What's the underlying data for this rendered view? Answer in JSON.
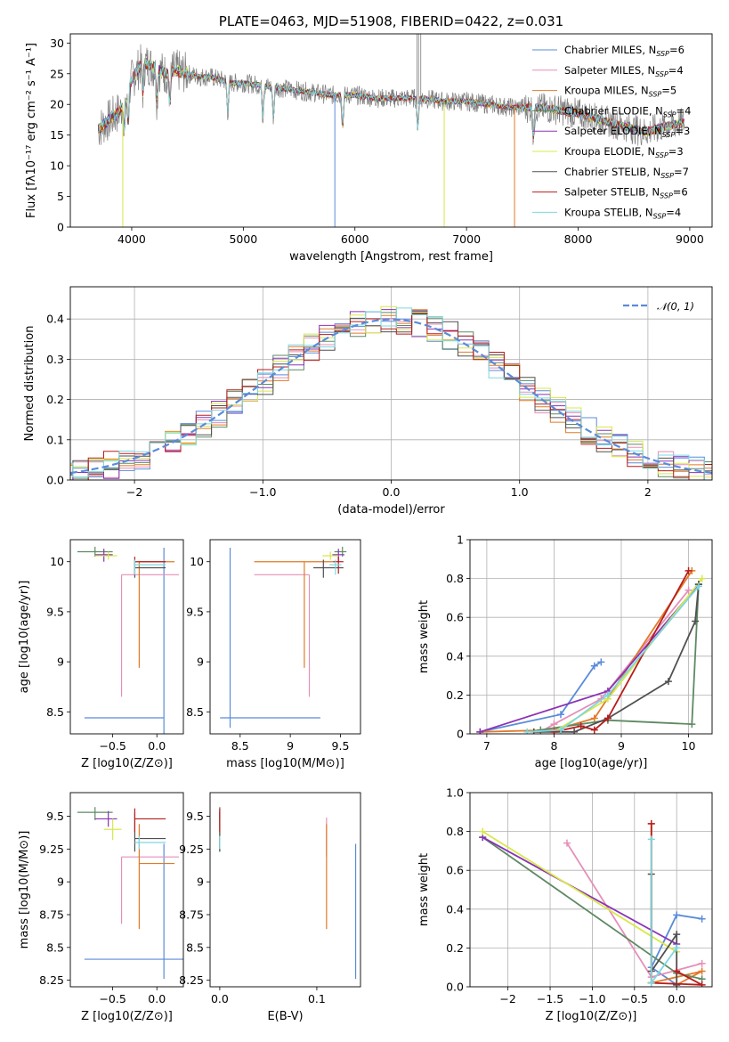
{
  "colors": {
    "Chabrier MILES": "#5b8bd9",
    "Salpeter MILES": "#e58fb8",
    "Kroupa MILES": "#e07a27",
    "Chabrier ELODIE": "#5e8a63",
    "Salpeter ELODIE": "#8a33b5",
    "Kroupa ELODIE": "#d7e84b",
    "Chabrier STELIB": "#505050",
    "Salpeter STELIB": "#b81c1c",
    "Kroupa STELIB": "#7dd7e0"
  },
  "chart_data": [
    {
      "type": "line",
      "title": "PLATE=0463, MJD=51908, FIBERID=0422, z=0.031",
      "xlabel": "wavelength [Angstrom, rest frame]",
      "ylabel": "Flux [fλ10⁻¹⁷ erg cm⁻² s⁻¹ A⁻¹]",
      "xlim": [
        3450,
        9200
      ],
      "ylim": [
        0,
        31.5
      ],
      "xticks": [
        4000,
        5000,
        6000,
        7000,
        8000,
        9000
      ],
      "yticks": [
        0,
        5,
        10,
        15,
        20,
        25,
        30
      ],
      "legend_position": "top-right",
      "legend": [
        {
          "model": "Chabrier MILES",
          "label": "Chabrier MILES, N",
          "sub": "SSP",
          "tail": "=6"
        },
        {
          "model": "Salpeter MILES",
          "label": "Salpeter MILES, N",
          "sub": "SSP",
          "tail": "=4"
        },
        {
          "model": "Kroupa MILES",
          "label": "Kroupa MILES, N",
          "sub": "SSP",
          "tail": "=5"
        },
        {
          "model": "Chabrier ELODIE",
          "label": "Chabrier ELODIE, N",
          "sub": "SSP",
          "tail": "=4"
        },
        {
          "model": "Salpeter ELODIE",
          "label": "Salpeter ELODIE, N",
          "sub": "SSP",
          "tail": "=3"
        },
        {
          "model": "Kroupa ELODIE",
          "label": "Kroupa ELODIE, N",
          "sub": "SSP",
          "tail": "=3"
        },
        {
          "model": "Chabrier STELIB",
          "label": "Chabrier STELIB, N",
          "sub": "SSP",
          "tail": "=7"
        },
        {
          "model": "Salpeter STELIB",
          "label": "Salpeter STELIB, N",
          "sub": "SSP",
          "tail": "=6"
        },
        {
          "model": "Kroupa STELIB",
          "label": "Kroupa STELIB, N",
          "sub": "SSP",
          "tail": "=4"
        }
      ],
      "continuum": {
        "wavelength": [
          3700,
          3800,
          3900,
          4000,
          4100,
          4200,
          4300,
          4400,
          4500,
          4600,
          4700,
          4800,
          4900,
          5000,
          5200,
          5400,
          5600,
          5800,
          6000,
          6200,
          6400,
          6600,
          6800,
          7000,
          7200,
          7400,
          7600,
          7800,
          8000,
          8200,
          8400,
          8600,
          8800,
          8950
        ],
        "flux": [
          16,
          17.5,
          19,
          24,
          27,
          26,
          25,
          25.5,
          25,
          24.5,
          24.5,
          24,
          23.5,
          23.5,
          23,
          22.5,
          22,
          21.5,
          21.5,
          21,
          21,
          21,
          20.5,
          20.5,
          20,
          19.5,
          19.5,
          19.2,
          18.5,
          17.5,
          16.5,
          15.5,
          16.5,
          17
        ]
      },
      "absorption_features": [
        3933,
        3968,
        4101,
        4226,
        4340,
        4861,
        5175,
        5270,
        5890,
        6563,
        7600
      ]
    },
    {
      "type": "histogram",
      "xlabel": "(data-model)/error",
      "ylabel": "Normed distribution",
      "xlim": [
        -2.5,
        2.5
      ],
      "ylim": [
        0,
        0.48
      ],
      "xticks": [
        -2,
        -1,
        0,
        1,
        2
      ],
      "yticks": [
        0.0,
        0.1,
        0.2,
        0.3,
        0.4
      ],
      "bin_width": 0.12,
      "legend_position": "top-right",
      "reference_label": "𝒩(0, 1)",
      "reference_curve": "normal(0,1)"
    },
    {
      "type": "errorbar",
      "xlabel": "Z [log10(Z/Z⊙)]",
      "ylabel": "age  [log10(age/yr)]",
      "xlim": [
        -0.98,
        0.3
      ],
      "ylim": [
        8.28,
        10.22
      ],
      "xticks": [
        -0.5,
        0.0
      ],
      "yticks": [
        8.5,
        9.0,
        9.5,
        10.0
      ],
      "points": [
        {
          "model": "Chabrier MILES",
          "x": 0.08,
          "xerr": [
            0.9,
            0.0
          ],
          "y": 8.44,
          "yerr": [
            0.2,
            1.7
          ]
        },
        {
          "model": "Salpeter MILES",
          "x": -0.4,
          "xerr": [
            0.0,
            0.65
          ],
          "y": 9.87,
          "yerr": [
            1.22,
            0.0
          ]
        },
        {
          "model": "Kroupa MILES",
          "x": -0.2,
          "xerr": [
            0.0,
            0.4
          ],
          "y": 10.0,
          "yerr": [
            1.06,
            0.0
          ]
        },
        {
          "model": "Chabrier ELODIE",
          "x": -0.7,
          "xerr": [
            0.2,
            0.2
          ],
          "y": 10.1,
          "yerr": [
            0.05,
            0.05
          ]
        },
        {
          "model": "Salpeter ELODIE",
          "x": -0.6,
          "xerr": [
            0.1,
            0.1
          ],
          "y": 10.07,
          "yerr": [
            0.07,
            0.06
          ]
        },
        {
          "model": "Kroupa ELODIE",
          "x": -0.55,
          "xerr": [
            0.15,
            0.1
          ],
          "y": 10.06,
          "yerr": [
            0.04,
            0.04
          ]
        },
        {
          "model": "Chabrier STELIB",
          "x": -0.25,
          "xerr": [
            0.0,
            0.35
          ],
          "y": 9.94,
          "yerr": [
            0.1,
            0.08
          ]
        },
        {
          "model": "Salpeter STELIB",
          "x": -0.25,
          "xerr": [
            0.0,
            0.35
          ],
          "y": 10.0,
          "yerr": [
            0.12,
            0.05
          ]
        },
        {
          "model": "Kroupa STELIB",
          "x": -0.25,
          "xerr": [
            0.0,
            0.35
          ],
          "y": 9.97,
          "yerr": [
            0.1,
            0.05
          ]
        }
      ]
    },
    {
      "type": "errorbar",
      "xlabel": "mass [log10(M/M⊙)]",
      "ylabel": "",
      "xlim": [
        8.2,
        9.7
      ],
      "ylim": [
        8.28,
        10.22
      ],
      "xticks": [
        8.5,
        9.0,
        9.5
      ],
      "yticks": [
        8.5,
        9.0,
        9.5,
        10.0
      ],
      "points": [
        {
          "model": "Chabrier MILES",
          "x": 8.4,
          "xerr": [
            0.1,
            0.9
          ],
          "y": 8.44,
          "yerr": [
            0.1,
            1.7
          ]
        },
        {
          "model": "Salpeter MILES",
          "x": 9.19,
          "xerr": [
            0.55,
            0.0
          ],
          "y": 9.87,
          "yerr": [
            1.22,
            0.0
          ]
        },
        {
          "model": "Kroupa MILES",
          "x": 9.14,
          "xerr": [
            0.5,
            0.3
          ],
          "y": 10.0,
          "yerr": [
            1.06,
            0.0
          ]
        },
        {
          "model": "Chabrier ELODIE",
          "x": 9.52,
          "xerr": [
            0.08,
            0.04
          ],
          "y": 10.1,
          "yerr": [
            0.05,
            0.05
          ]
        },
        {
          "model": "Salpeter ELODIE",
          "x": 9.48,
          "xerr": [
            0.06,
            0.06
          ],
          "y": 10.07,
          "yerr": [
            0.07,
            0.06
          ]
        },
        {
          "model": "Kroupa ELODIE",
          "x": 9.4,
          "xerr": [
            0.08,
            0.08
          ],
          "y": 10.06,
          "yerr": [
            0.04,
            0.04
          ]
        },
        {
          "model": "Chabrier STELIB",
          "x": 9.33,
          "xerr": [
            0.1,
            0.2
          ],
          "y": 9.94,
          "yerr": [
            0.1,
            0.08
          ]
        },
        {
          "model": "Salpeter STELIB",
          "x": 9.48,
          "xerr": [
            0.05,
            0.05
          ],
          "y": 10.0,
          "yerr": [
            0.12,
            0.05
          ]
        },
        {
          "model": "Kroupa STELIB",
          "x": 9.45,
          "xerr": [
            0.06,
            0.06
          ],
          "y": 9.97,
          "yerr": [
            0.1,
            0.05
          ]
        }
      ]
    },
    {
      "type": "line",
      "xlabel": "age  [log10(age/yr)]",
      "ylabel": "mass weight",
      "xlim": [
        6.75,
        10.35
      ],
      "ylim": [
        0,
        1.0
      ],
      "xticks": [
        7,
        8,
        9,
        10
      ],
      "yticks": [
        0.0,
        0.2,
        0.4,
        0.6,
        0.8,
        1.0
      ],
      "series": [
        {
          "model": "Chabrier MILES",
          "x": [
            6.9,
            8.1,
            8.6,
            8.7
          ],
          "y": [
            0.01,
            0.1,
            0.35,
            0.37
          ]
        },
        {
          "model": "Salpeter MILES",
          "x": [
            7.8,
            8.0,
            8.7,
            10.0
          ],
          "y": [
            0.01,
            0.05,
            0.18,
            0.74
          ]
        },
        {
          "model": "Kroupa MILES",
          "x": [
            6.9,
            8.0,
            8.6,
            10.05
          ],
          "y": [
            0.01,
            0.02,
            0.08,
            0.84
          ]
        },
        {
          "model": "Chabrier ELODIE",
          "x": [
            7.8,
            8.8,
            10.05,
            10.15
          ],
          "y": [
            0.02,
            0.07,
            0.05,
            0.77
          ]
        },
        {
          "model": "Salpeter ELODIE",
          "x": [
            6.9,
            8.8,
            10.15
          ],
          "y": [
            0.01,
            0.22,
            0.77
          ]
        },
        {
          "model": "Kroupa ELODIE",
          "x": [
            8.0,
            8.8,
            10.2
          ],
          "y": [
            0.01,
            0.18,
            0.8
          ]
        },
        {
          "model": "Chabrier STELIB",
          "x": [
            7.7,
            8.3,
            8.8,
            9.7,
            10.1,
            10.15
          ],
          "y": [
            0.01,
            0.01,
            0.08,
            0.27,
            0.58,
            0.77
          ]
        },
        {
          "model": "Salpeter STELIB",
          "x": [
            8.0,
            8.4,
            8.6,
            8.8,
            10.0
          ],
          "y": [
            0.01,
            0.04,
            0.02,
            0.08,
            0.84
          ]
        },
        {
          "model": "Kroupa STELIB",
          "x": [
            7.6,
            8.1,
            8.8,
            10.15
          ],
          "y": [
            0.01,
            0.02,
            0.2,
            0.76
          ]
        }
      ]
    },
    {
      "type": "errorbar",
      "xlabel": "Z [log10(Z/Z⊙)]",
      "ylabel": "mass [log10(M/M⊙)]",
      "xlim": [
        -0.98,
        0.3
      ],
      "ylim": [
        8.2,
        9.68
      ],
      "xticks": [
        -0.5,
        0.0
      ],
      "yticks": [
        8.25,
        8.5,
        8.75,
        9.0,
        9.25,
        9.5
      ],
      "points": [
        {
          "model": "Chabrier MILES",
          "x": 0.08,
          "xerr": [
            0.9,
            0.22
          ],
          "y": 8.41,
          "yerr": [
            0.15,
            0.88
          ]
        },
        {
          "model": "Salpeter MILES",
          "x": -0.4,
          "xerr": [
            0.0,
            0.65
          ],
          "y": 9.19,
          "yerr": [
            0.51,
            0.0
          ]
        },
        {
          "model": "Kroupa MILES",
          "x": -0.2,
          "xerr": [
            0.0,
            0.4
          ],
          "y": 9.14,
          "yerr": [
            0.5,
            0.3
          ]
        },
        {
          "model": "Chabrier ELODIE",
          "x": -0.7,
          "xerr": [
            0.2,
            0.2
          ],
          "y": 9.53,
          "yerr": [
            0.06,
            0.04
          ]
        },
        {
          "model": "Salpeter ELODIE",
          "x": -0.55,
          "xerr": [
            0.15,
            0.1
          ],
          "y": 9.48,
          "yerr": [
            0.06,
            0.06
          ]
        },
        {
          "model": "Kroupa ELODIE",
          "x": -0.5,
          "xerr": [
            0.1,
            0.1
          ],
          "y": 9.4,
          "yerr": [
            0.08,
            0.08
          ]
        },
        {
          "model": "Chabrier STELIB",
          "x": -0.25,
          "xerr": [
            0.0,
            0.35
          ],
          "y": 9.33,
          "yerr": [
            0.1,
            0.2
          ]
        },
        {
          "model": "Salpeter STELIB",
          "x": -0.25,
          "xerr": [
            0.0,
            0.35
          ],
          "y": 9.48,
          "yerr": [
            0.1,
            0.08
          ]
        },
        {
          "model": "Kroupa STELIB",
          "x": -0.2,
          "xerr": [
            0.05,
            0.3
          ],
          "y": 9.3,
          "yerr": [
            0.05,
            0.05
          ]
        }
      ]
    },
    {
      "type": "errorbar",
      "xlabel": "E(B-V)",
      "ylabel": "",
      "xlim": [
        -0.01,
        0.145
      ],
      "ylim": [
        8.2,
        9.68
      ],
      "xticks": [
        0.0,
        0.1
      ],
      "yticks": [
        8.25,
        8.5,
        8.75,
        9.0,
        9.25,
        9.5
      ],
      "points": [
        {
          "model": "Chabrier MILES",
          "x": 0.14,
          "y": 8.41,
          "yerr": [
            0.15,
            0.88
          ]
        },
        {
          "model": "Salpeter MILES",
          "x": 0.11,
          "y": 9.19,
          "yerr": [
            0.0,
            0.3
          ]
        },
        {
          "model": "Kroupa MILES",
          "x": 0.11,
          "y": 9.14,
          "yerr": [
            0.5,
            0.3
          ]
        },
        {
          "model": "Chabrier ELODIE",
          "x": 0.0,
          "y": 9.53,
          "yerr": [
            0.3,
            0.04
          ]
        },
        {
          "model": "Salpeter ELODIE",
          "x": 0.0,
          "y": 9.48,
          "yerr": [
            0.06,
            0.06
          ]
        },
        {
          "model": "Kroupa ELODIE",
          "x": 0.0,
          "y": 9.4,
          "yerr": [
            0.08,
            0.08
          ]
        },
        {
          "model": "Chabrier STELIB",
          "x": 0.0,
          "y": 9.33,
          "yerr": [
            0.1,
            0.2
          ]
        },
        {
          "model": "Salpeter STELIB",
          "x": 0.0,
          "y": 9.48,
          "yerr": [
            0.1,
            0.08
          ]
        },
        {
          "model": "Kroupa STELIB",
          "x": 0.0,
          "y": 9.3,
          "yerr": [
            0.05,
            0.05
          ]
        }
      ]
    },
    {
      "type": "line",
      "xlabel": "Z [log10(Z/Z⊙)]",
      "ylabel": "mass weight",
      "xlim": [
        -2.45,
        0.42
      ],
      "ylim": [
        0,
        1.0
      ],
      "xticks": [
        -2.0,
        -1.5,
        -1.0,
        -0.5,
        0.0
      ],
      "yticks": [
        0.0,
        0.2,
        0.4,
        0.6,
        0.8,
        1.0
      ],
      "series": [
        {
          "model": "Chabrier MILES",
          "x": [
            0.3,
            0.0,
            -0.3,
            0.0
          ],
          "y": [
            0.35,
            0.37,
            0.1,
            0.01
          ]
        },
        {
          "model": "Salpeter MILES",
          "x": [
            -1.3,
            -0.3,
            0.3
          ],
          "y": [
            0.74,
            0.05,
            0.12
          ]
        },
        {
          "model": "Kroupa MILES",
          "x": [
            -0.3,
            -0.3,
            0.3,
            0.0
          ],
          "y": [
            0.84,
            0.02,
            0.08,
            0.01
          ]
        },
        {
          "model": "Chabrier ELODIE",
          "x": [
            -2.3,
            0.0,
            0.3
          ],
          "y": [
            0.77,
            0.07,
            0.04
          ]
        },
        {
          "model": "Salpeter ELODIE",
          "x": [
            -2.3,
            0.0
          ],
          "y": [
            0.77,
            0.22
          ]
        },
        {
          "model": "Kroupa ELODIE",
          "x": [
            -2.3,
            0.0
          ],
          "y": [
            0.8,
            0.18
          ]
        },
        {
          "model": "Chabrier STELIB",
          "x": [
            -0.3,
            -0.3,
            0.0,
            0.0
          ],
          "y": [
            0.58,
            0.08,
            0.27,
            0.01
          ]
        },
        {
          "model": "Salpeter STELIB",
          "x": [
            -0.3,
            -0.3,
            0.3,
            0.0
          ],
          "y": [
            0.84,
            0.02,
            0.01,
            0.08
          ]
        },
        {
          "model": "Kroupa STELIB",
          "x": [
            -0.3,
            -0.3,
            0.0
          ],
          "y": [
            0.76,
            0.02,
            0.2
          ]
        }
      ]
    }
  ]
}
